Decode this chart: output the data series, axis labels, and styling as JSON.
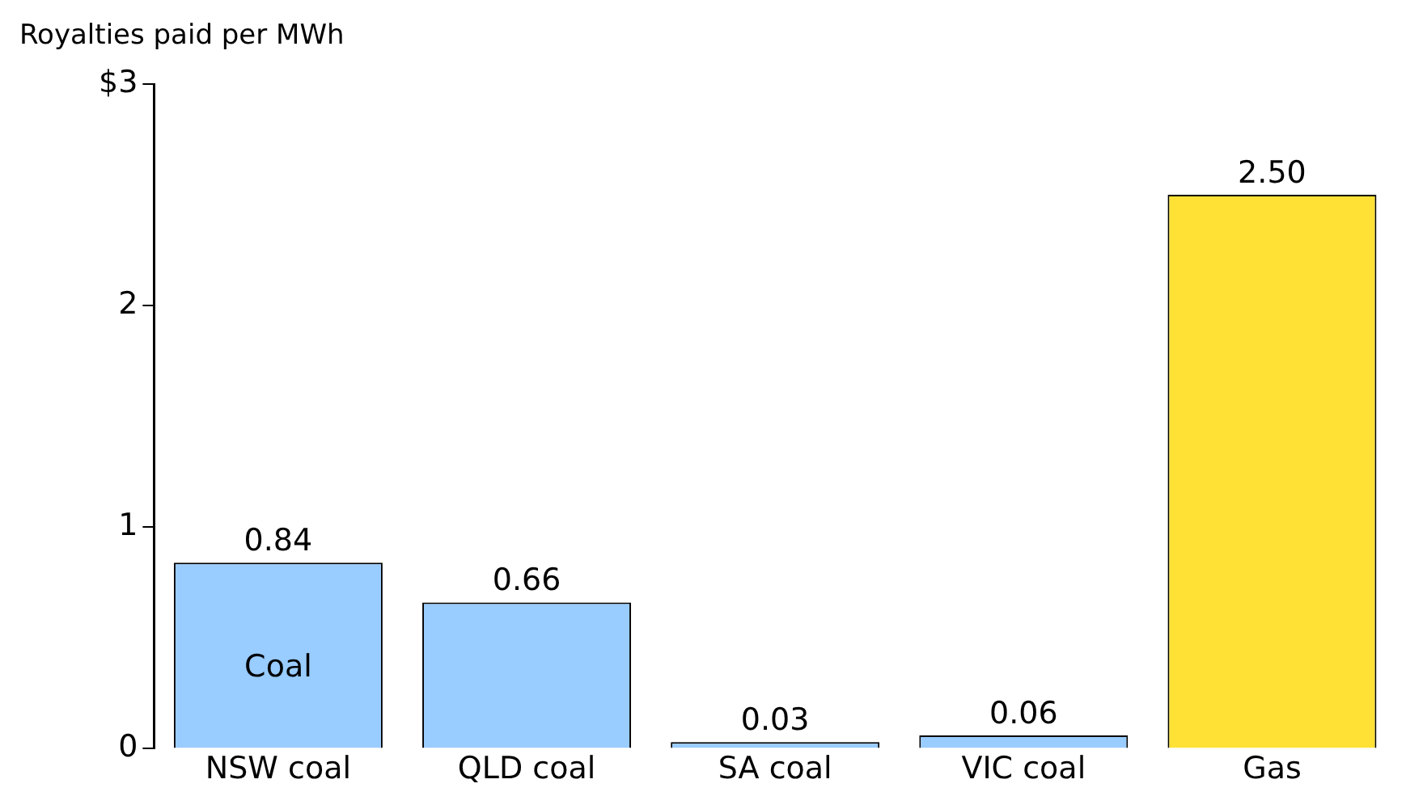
{
  "chart_data": {
    "type": "bar",
    "ylabel": "Royalties paid per MWh",
    "categories": [
      "NSW coal",
      "QLD coal",
      "SA coal",
      "VIC coal",
      "Gas"
    ],
    "values": [
      0.84,
      0.66,
      0.03,
      0.06,
      2.5
    ],
    "colors": [
      "#99ccff",
      "#99ccff",
      "#99ccff",
      "#99ccff",
      "#ffe135"
    ],
    "value_labels": [
      "0.84",
      "0.66",
      "0.03",
      "0.06",
      "2.50"
    ],
    "ylim": [
      0,
      3
    ],
    "yticks": [
      0,
      1,
      2,
      {
        "value": 3,
        "label": "$3"
      }
    ],
    "annotations": [
      "Coal"
    ],
    "grid": false,
    "legend": false
  }
}
